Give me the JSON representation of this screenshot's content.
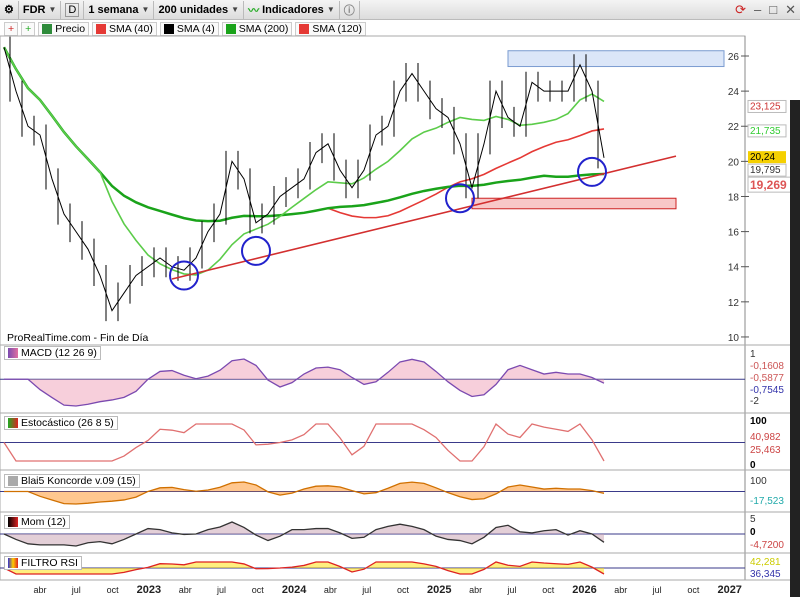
{
  "toolbar": {
    "symbol": "FDR",
    "d_label": "D",
    "period": "1 semana",
    "units": "200 unidades",
    "indicators": "Indicadores"
  },
  "legend": [
    {
      "label": "Precio",
      "color": "#2e8b3a"
    },
    {
      "label": "SMA (40)",
      "color": "#e53935"
    },
    {
      "label": "SMA (4)",
      "color": "#000000"
    },
    {
      "label": "SMA (200)",
      "color": "#1aa31a"
    },
    {
      "label": "SMA (120)",
      "color": "#e53935"
    }
  ],
  "watermark": "ProRealTime.com - Fin de Día",
  "panels": {
    "macd": "MACD (12 26 9)",
    "stoch": "Estocástico (26 8 5)",
    "koncorde": "Blai5 Koncorde v.09 (15)",
    "mom": "Mom (12)",
    "rsi": "FILTRO RSI"
  },
  "chart_data": {
    "type": "line",
    "x_start": "2022-01",
    "x_step": "month",
    "price": [
      26.5,
      24,
      22,
      21.5,
      19,
      17,
      16,
      15,
      13.5,
      11.5,
      12.5,
      13.5,
      14,
      14.5,
      14,
      13.8,
      14.5,
      16,
      17,
      20,
      19,
      16.5,
      17,
      18,
      18.5,
      19,
      20.5,
      21,
      19.5,
      18.5,
      19.5,
      21.5,
      22,
      24,
      25,
      24,
      23,
      22.5,
      21,
      18.5,
      21,
      24,
      22.5,
      22,
      24.5,
      24,
      24,
      24,
      25.5,
      24,
      20.2
    ],
    "ylim": [
      10,
      27
    ],
    "yticks": [
      10,
      12,
      14,
      16,
      18,
      20,
      22,
      24,
      26
    ],
    "xticks": [
      "abr",
      "jul",
      "oct",
      "2023",
      "abr",
      "jul",
      "oct",
      "2024",
      "abr",
      "jul",
      "oct",
      "2025",
      "abr",
      "jul",
      "oct",
      "2026",
      "abr",
      "jul",
      "oct",
      "2027"
    ],
    "last_values": {
      "sma120": "23,125",
      "sma40": "21,735",
      "price": "20,24",
      "sma4": "19,795",
      "sma200": "19,269"
    },
    "trendline": {
      "from": [
        "2023-03",
        13.3
      ],
      "to": [
        "2026-09",
        20.3
      ],
      "color": "#d32f2f"
    },
    "zones": [
      {
        "from": "2025-07",
        "to": "2027-01",
        "low": 25.4,
        "high": 26.3,
        "color": "#dbe6f8"
      },
      {
        "from": "2025-04",
        "to": "2026-09",
        "low": 17.3,
        "high": 17.9,
        "color": "#f8c8c8"
      }
    ],
    "circles": [
      [
        "2023-04",
        13.5
      ],
      [
        "2023-10",
        14.9
      ],
      [
        "2025-03",
        17.9
      ],
      [
        "2026-02",
        19.4
      ]
    ],
    "macd": {
      "ticks": [
        "1",
        "-2"
      ],
      "values": [
        "-0,1608",
        "-0,5877",
        "-0,7545"
      ]
    },
    "stoch": {
      "ticks": [
        "100",
        "0"
      ],
      "values": [
        "40,982",
        "25,463"
      ]
    },
    "koncorde": {
      "ticks": [
        "100"
      ],
      "values": [
        "-17,523"
      ]
    },
    "mom": {
      "ticks": [
        "5",
        "0"
      ],
      "values": [
        "-4,7200"
      ]
    },
    "rsi": {
      "values": [
        "42,281",
        "36,345"
      ]
    }
  }
}
